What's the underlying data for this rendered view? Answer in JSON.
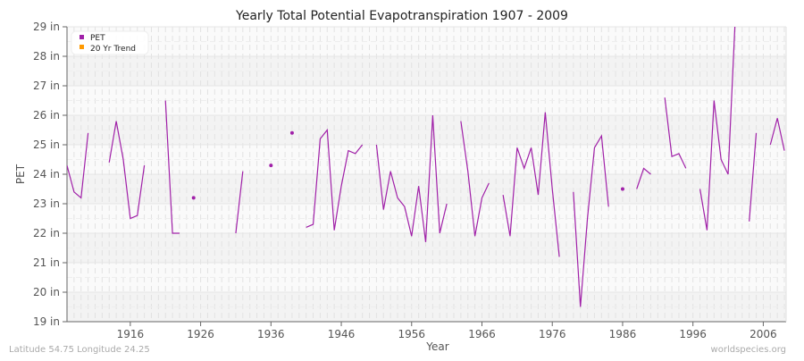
{
  "chart_data": {
    "type": "line",
    "title": "Yearly Total Potential Evapotranspiration 1907 - 2009",
    "xlabel": "Year",
    "ylabel": "PET",
    "xlim": [
      1907,
      2009
    ],
    "ylim": [
      19,
      29
    ],
    "y_unit": "in",
    "x_ticks": [
      1916,
      1926,
      1936,
      1946,
      1956,
      1966,
      1976,
      1986,
      1996,
      2006
    ],
    "y_ticks": [
      19,
      20,
      21,
      22,
      23,
      24,
      25,
      26,
      27,
      28,
      29
    ],
    "y_tick_labels": [
      "19 in",
      "20 in",
      "21 in",
      "22 in",
      "23 in",
      "24 in",
      "25 in",
      "26 in",
      "27 in",
      "28 in",
      "29 in"
    ],
    "grid": true,
    "legend_position": "top-left",
    "legend": [
      {
        "name": "PET",
        "color": "#a020a8"
      },
      {
        "name": "20 Yr Trend",
        "color": "#ff9900"
      }
    ],
    "series": [
      {
        "name": "PET",
        "color": "#a020a8",
        "x": [
          1907,
          1908,
          1909,
          1910,
          1911,
          1912,
          1913,
          1914,
          1915,
          1916,
          1917,
          1918,
          1919,
          1920,
          1921,
          1922,
          1923,
          1924,
          1925,
          1926,
          1927,
          1928,
          1929,
          1930,
          1931,
          1932,
          1933,
          1934,
          1935,
          1936,
          1937,
          1938,
          1939,
          1940,
          1941,
          1942,
          1943,
          1944,
          1945,
          1946,
          1947,
          1948,
          1949,
          1950,
          1951,
          1952,
          1953,
          1954,
          1955,
          1956,
          1957,
          1958,
          1959,
          1960,
          1961,
          1962,
          1963,
          1964,
          1965,
          1966,
          1967,
          1968,
          1969,
          1970,
          1971,
          1972,
          1973,
          1974,
          1975,
          1976,
          1977,
          1978,
          1979,
          1980,
          1981,
          1982,
          1983,
          1984,
          1985,
          1986,
          1987,
          1988,
          1989,
          1990,
          1991,
          1992,
          1993,
          1994,
          1995,
          1996,
          1997,
          1998,
          1999,
          2000,
          2001,
          2002,
          2003,
          2004,
          2005,
          2006,
          2007,
          2008,
          2009
        ],
        "values": [
          24.3,
          23.4,
          23.2,
          25.4,
          null,
          null,
          24.4,
          25.8,
          24.5,
          22.5,
          22.6,
          24.3,
          null,
          null,
          26.5,
          22.0,
          22.0,
          null,
          23.2,
          null,
          null,
          null,
          null,
          null,
          22.0,
          24.1,
          null,
          null,
          null,
          24.3,
          null,
          null,
          25.4,
          null,
          22.2,
          22.3,
          25.2,
          25.5,
          22.1,
          23.6,
          24.8,
          24.7,
          25.0,
          null,
          25.0,
          22.8,
          24.1,
          23.2,
          22.9,
          21.9,
          23.6,
          21.7,
          26.0,
          22.0,
          23.0,
          null,
          25.8,
          24.1,
          21.9,
          23.2,
          23.7,
          null,
          23.3,
          21.9,
          24.9,
          24.2,
          24.9,
          23.3,
          26.1,
          23.5,
          21.2,
          null,
          23.4,
          19.5,
          22.5,
          24.9,
          25.3,
          22.9,
          null,
          23.5,
          null,
          23.5,
          24.2,
          24.0,
          null,
          26.6,
          24.6,
          24.7,
          24.2,
          null,
          23.5,
          22.1,
          26.5,
          24.5,
          24.0,
          29.2,
          null,
          22.4,
          25.4,
          null,
          25.0,
          25.9,
          24.8
        ]
      }
    ]
  },
  "footer": {
    "location": "Latitude 54.75 Longitude 24.25",
    "source": "worldspecies.org"
  }
}
